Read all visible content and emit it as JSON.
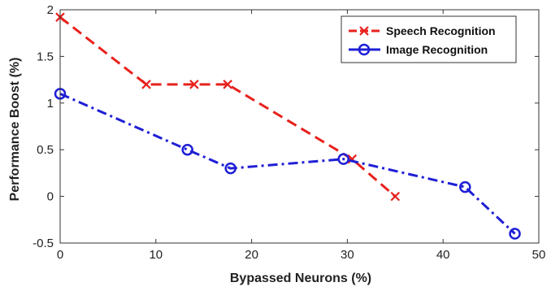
{
  "chart_data": {
    "type": "line",
    "xlabel": "Bypassed Neurons (%)",
    "ylabel": "Performance Boost (%)",
    "xlim": [
      0,
      50
    ],
    "ylim": [
      -0.5,
      2
    ],
    "xticks": [
      0,
      10,
      20,
      30,
      40,
      50
    ],
    "xtick_labels": [
      "0",
      "10",
      "20",
      "30",
      "40",
      "50"
    ],
    "yticks": [
      2,
      1.5,
      1,
      0.5,
      0,
      -0.5
    ],
    "ytick_labels": [
      "2",
      "1.5",
      "1",
      "0.5",
      "0",
      "-0.5"
    ],
    "grid": false,
    "legend_position": "top-right",
    "series": [
      {
        "name": "Speech Recognition",
        "color": "#e8211c",
        "linestyle": "dashed",
        "marker": "x",
        "x": [
          0,
          9,
          14,
          17.5,
          30.5,
          35
        ],
        "y": [
          1.92,
          1.2,
          1.2,
          1.2,
          0.4,
          0.0
        ]
      },
      {
        "name": "Image Recognition",
        "color": "#1f1fd6",
        "linestyle": "dashdot",
        "marker": "o",
        "x": [
          0,
          13.3,
          17.8,
          29.6,
          42.3,
          47.5
        ],
        "y": [
          1.1,
          0.5,
          0.3,
          0.4,
          0.1,
          -0.4
        ]
      }
    ]
  }
}
